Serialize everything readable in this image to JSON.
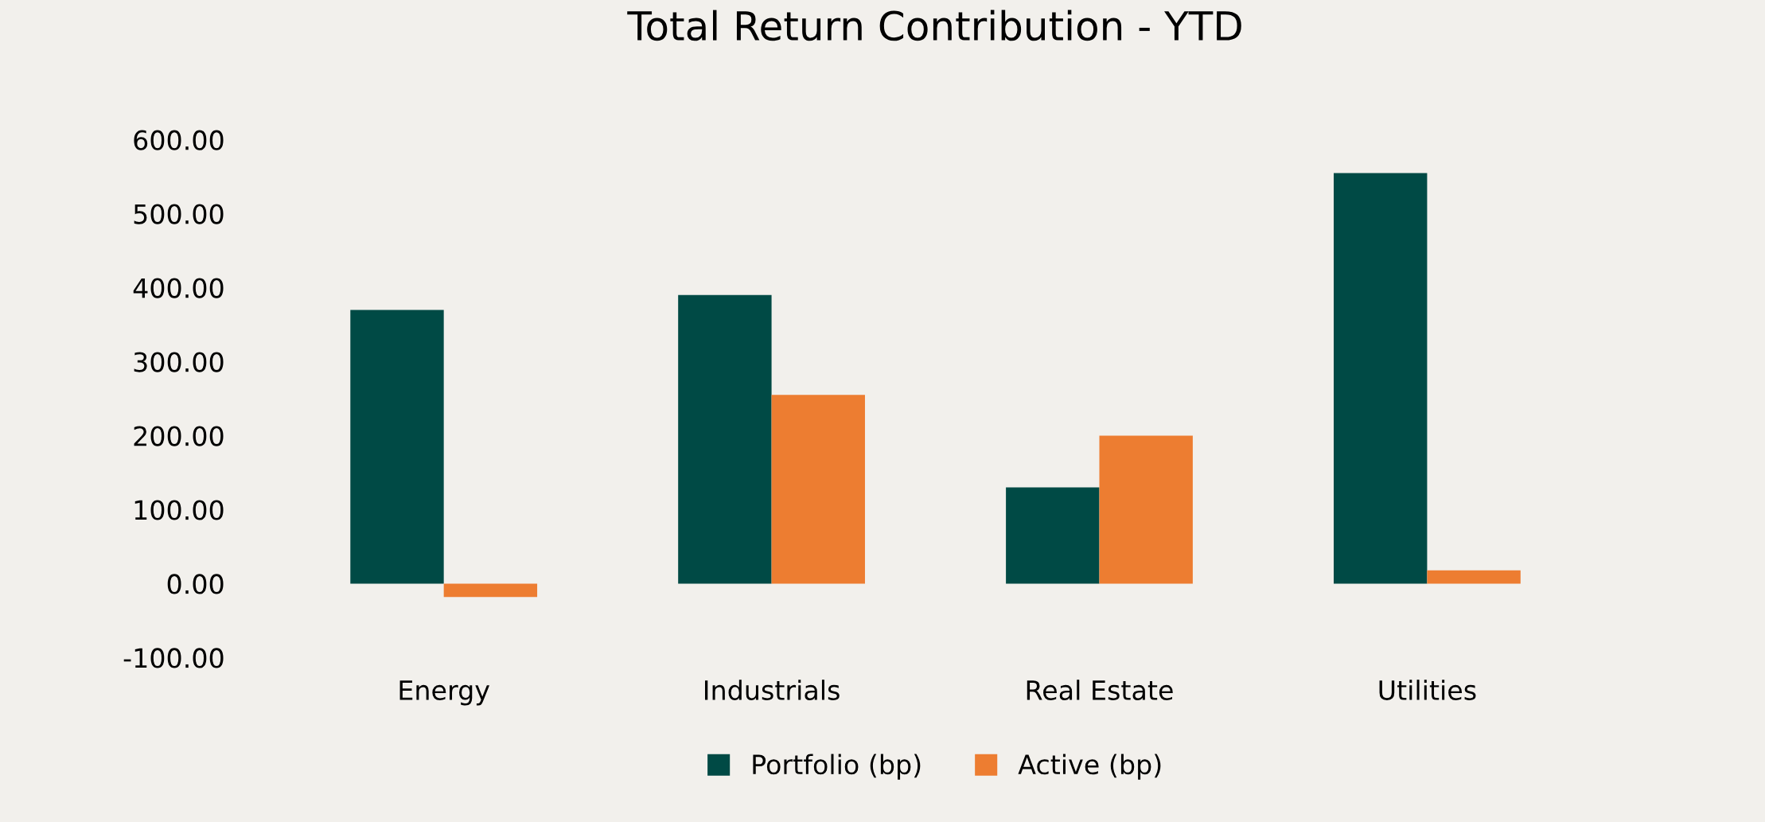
{
  "chart_data": {
    "type": "bar",
    "title": "Total Return Contribution - YTD",
    "categories": [
      "Energy",
      "Industrials",
      "Real Estate",
      "Utilities"
    ],
    "series": [
      {
        "name": "Portfolio (bp)",
        "color": "#004a45",
        "values": [
          370,
          390,
          130,
          555
        ]
      },
      {
        "name": "Active (bp)",
        "color": "#ed7d31",
        "values": [
          -18,
          255,
          200,
          18
        ]
      }
    ],
    "ylim": [
      -100,
      600
    ],
    "yticks": [
      {
        "value": -100,
        "label": "-100.00"
      },
      {
        "value": 0,
        "label": "0.00"
      },
      {
        "value": 100,
        "label": "100.00"
      },
      {
        "value": 200,
        "label": "200.00"
      },
      {
        "value": 300,
        "label": "300.00"
      },
      {
        "value": 400,
        "label": "400.00"
      },
      {
        "value": 500,
        "label": "500.00"
      },
      {
        "value": 600,
        "label": "600.00"
      }
    ],
    "grid": false,
    "legend": "bottom"
  }
}
